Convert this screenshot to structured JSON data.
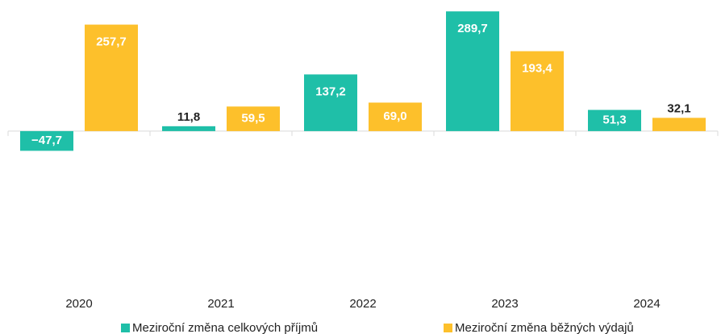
{
  "chart_data": {
    "type": "bar",
    "categories": [
      "2020",
      "2021",
      "2022",
      "2023",
      "2024"
    ],
    "series": [
      {
        "name": "Meziroční změna celkových příjmů",
        "color": "#1fbfa8",
        "values": [
          -47.7,
          11.8,
          137.2,
          289.7,
          51.3
        ],
        "value_labels": [
          "−47,7",
          "11,8",
          "137,2",
          "289,7",
          "51,3"
        ]
      },
      {
        "name": "Meziroční změna běžných výdajů",
        "color": "#fdc02b",
        "values": [
          257.7,
          59.5,
          69.0,
          193.4,
          32.1
        ],
        "value_labels": [
          "257,7",
          "59,5",
          "69,0",
          "193,4",
          "32,1"
        ]
      }
    ],
    "ylim": [
      -380,
      290
    ]
  }
}
